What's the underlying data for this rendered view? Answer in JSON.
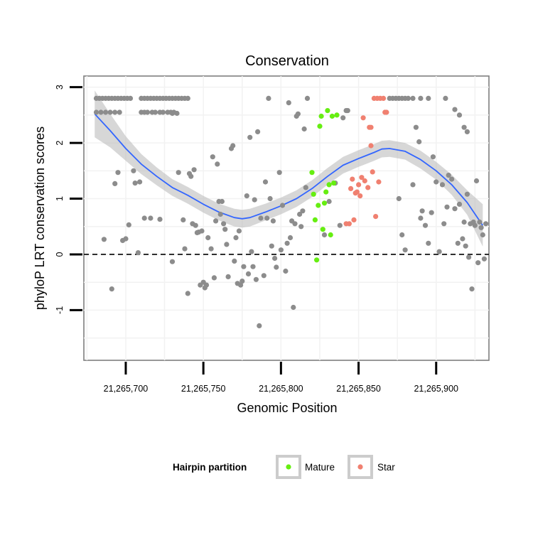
{
  "chart_data": {
    "type": "scatter",
    "title": "Conservation",
    "xlabel": "Genomic Position",
    "ylabel": "phyloP LRT conservation scores",
    "xlim": [
      21265673,
      21265934
    ],
    "ylim": [
      -1.9,
      3.2
    ],
    "x_ticks": [
      21265700,
      21265750,
      21265800,
      21265850,
      21265900
    ],
    "x_tick_labels": [
      "21,265,700",
      "21,265,750",
      "21,265,800",
      "21,265,850",
      "21,265,900"
    ],
    "y_ticks": [
      -1,
      0,
      1,
      2,
      3
    ],
    "y_tick_labels": [
      "-1",
      "0",
      "1",
      "2",
      "3"
    ],
    "reference_line": {
      "y": 0,
      "style": "dashed"
    },
    "legend": {
      "title": "Hairpin partition",
      "placement": "bottom",
      "entries": [
        {
          "label": "Mature",
          "color": "#66ee11"
        },
        {
          "label": "Star",
          "color": "#f08070"
        }
      ]
    },
    "colors": {
      "other": "#8c8c8c",
      "mature": "#66ee11",
      "star": "#f08070",
      "smooth": "#3366ff",
      "ribbon": "#bdbdbd"
    },
    "series": [
      {
        "name": "Other",
        "points": [
          [
            21265681,
            2.8
          ],
          [
            21265683,
            2.8
          ],
          [
            21265685,
            2.8
          ],
          [
            21265687,
            2.8
          ],
          [
            21265689,
            2.8
          ],
          [
            21265691,
            2.8
          ],
          [
            21265693,
            2.8
          ],
          [
            21265695,
            2.8
          ],
          [
            21265697,
            2.8
          ],
          [
            21265699,
            2.8
          ],
          [
            21265701,
            2.8
          ],
          [
            21265703,
            2.8
          ],
          [
            21265710,
            2.8
          ],
          [
            21265712,
            2.8
          ],
          [
            21265714,
            2.8
          ],
          [
            21265716,
            2.8
          ],
          [
            21265718,
            2.8
          ],
          [
            21265720,
            2.8
          ],
          [
            21265722,
            2.8
          ],
          [
            21265724,
            2.8
          ],
          [
            21265726,
            2.8
          ],
          [
            21265728,
            2.8
          ],
          [
            21265730,
            2.8
          ],
          [
            21265732,
            2.8
          ],
          [
            21265734,
            2.8
          ],
          [
            21265736,
            2.8
          ],
          [
            21265738,
            2.8
          ],
          [
            21265740,
            2.8
          ],
          [
            21265681,
            2.55
          ],
          [
            21265684,
            2.55
          ],
          [
            21265687,
            2.55
          ],
          [
            21265690,
            2.55
          ],
          [
            21265693,
            2.55
          ],
          [
            21265696,
            2.55
          ],
          [
            21265710,
            2.55
          ],
          [
            21265712,
            2.55
          ],
          [
            21265714,
            2.55
          ],
          [
            21265717,
            2.55
          ],
          [
            21265719,
            2.55
          ],
          [
            21265722,
            2.55
          ],
          [
            21265724,
            2.55
          ],
          [
            21265727,
            2.55
          ],
          [
            21265729,
            2.55
          ],
          [
            21265731,
            2.55
          ],
          [
            21265730,
            2.53
          ],
          [
            21265733,
            2.53
          ],
          [
            21265686,
            0.27
          ],
          [
            21265691,
            -0.62
          ],
          [
            21265693,
            1.27
          ],
          [
            21265695,
            1.47
          ],
          [
            21265698,
            0.25
          ],
          [
            21265700,
            0.28
          ],
          [
            21265702,
            0.53
          ],
          [
            21265705,
            1.5
          ],
          [
            21265706,
            1.28
          ],
          [
            21265708,
            0.03
          ],
          [
            21265709,
            1.3
          ],
          [
            21265712,
            0.65
          ],
          [
            21265716,
            0.65
          ],
          [
            21265722,
            0.63
          ],
          [
            21265730,
            -0.13
          ],
          [
            21265734,
            1.47
          ],
          [
            21265737,
            0.62
          ],
          [
            21265738,
            0.1
          ],
          [
            21265740,
            -0.7
          ],
          [
            21265741,
            1.45
          ],
          [
            21265742,
            1.4
          ],
          [
            21265743,
            0.55
          ],
          [
            21265744,
            1.52
          ],
          [
            21265745,
            0.52
          ],
          [
            21265746,
            0.39
          ],
          [
            21265747,
            0.4
          ],
          [
            21265748,
            -0.55
          ],
          [
            21265749,
            0.42
          ],
          [
            21265750,
            -0.5
          ],
          [
            21265751,
            -0.6
          ],
          [
            21265752,
            -0.55
          ],
          [
            21265753,
            0.3
          ],
          [
            21265755,
            0.1
          ],
          [
            21265756,
            1.75
          ],
          [
            21265757,
            -0.42
          ],
          [
            21265758,
            0.6
          ],
          [
            21265759,
            1.62
          ],
          [
            21265760,
            0.95
          ],
          [
            21265761,
            0.72
          ],
          [
            21265762,
            0.95
          ],
          [
            21265763,
            0.55
          ],
          [
            21265764,
            0.45
          ],
          [
            21265765,
            0.18
          ],
          [
            21265766,
            -0.4
          ],
          [
            21265768,
            1.9
          ],
          [
            21265769,
            1.95
          ],
          [
            21265770,
            -0.12
          ],
          [
            21265771,
            0.3
          ],
          [
            21265772,
            -0.52
          ],
          [
            21265773,
            0.42
          ],
          [
            21265774,
            -0.55
          ],
          [
            21265775,
            -0.48
          ],
          [
            21265776,
            -0.22
          ],
          [
            21265778,
            1.05
          ],
          [
            21265779,
            -0.35
          ],
          [
            21265780,
            2.1
          ],
          [
            21265781,
            0.05
          ],
          [
            21265782,
            -0.22
          ],
          [
            21265783,
            0.98
          ],
          [
            21265784,
            -0.45
          ],
          [
            21265785,
            2.2
          ],
          [
            21265786,
            -1.28
          ],
          [
            21265787,
            0.65
          ],
          [
            21265789,
            -0.38
          ],
          [
            21265790,
            1.3
          ],
          [
            21265791,
            0.65
          ],
          [
            21265792,
            2.8
          ],
          [
            21265793,
            1.0
          ],
          [
            21265794,
            0.15
          ],
          [
            21265795,
            0.6
          ],
          [
            21265796,
            -0.07
          ],
          [
            21265797,
            -0.23
          ],
          [
            21265799,
            1.47
          ],
          [
            21265800,
            0.08
          ],
          [
            21265801,
            0.88
          ],
          [
            21265803,
            -0.3
          ],
          [
            21265804,
            0.2
          ],
          [
            21265805,
            2.72
          ],
          [
            21265806,
            0.3
          ],
          [
            21265807,
            0.6
          ],
          [
            21265808,
            -0.95
          ],
          [
            21265809,
            0.55
          ],
          [
            21265810,
            2.48
          ],
          [
            21265811,
            2.52
          ],
          [
            21265813,
            0.5
          ],
          [
            21265815,
            2.25
          ],
          [
            21265817,
            2.8
          ],
          [
            21265812,
            0.72
          ],
          [
            21265814,
            0.78
          ],
          [
            21265816,
            1.2
          ],
          [
            21265828,
            0.35
          ],
          [
            21265831,
            0.95
          ],
          [
            21265835,
            1.28
          ],
          [
            21265838,
            0.52
          ],
          [
            21265840,
            2.45
          ],
          [
            21265842,
            2.58
          ],
          [
            21265843,
            2.58
          ],
          [
            21265870,
            2.8
          ],
          [
            21265872,
            2.8
          ],
          [
            21265874,
            2.8
          ],
          [
            21265876,
            2.8
          ],
          [
            21265878,
            2.8
          ],
          [
            21265880,
            2.8
          ],
          [
            21265882,
            2.8
          ],
          [
            21265885,
            2.8
          ],
          [
            21265890,
            2.8
          ],
          [
            21265895,
            2.8
          ],
          [
            21265906,
            2.8
          ],
          [
            21265912,
            2.6
          ],
          [
            21265915,
            2.5
          ],
          [
            21265918,
            2.28
          ],
          [
            21265920,
            2.2
          ],
          [
            21265876,
            1.0
          ],
          [
            21265878,
            0.35
          ],
          [
            21265880,
            0.08
          ],
          [
            21265885,
            1.25
          ],
          [
            21265887,
            2.28
          ],
          [
            21265889,
            2.02
          ],
          [
            21265890,
            0.65
          ],
          [
            21265891,
            0.78
          ],
          [
            21265893,
            0.52
          ],
          [
            21265895,
            0.2
          ],
          [
            21265897,
            0.75
          ],
          [
            21265898,
            1.75
          ],
          [
            21265900,
            1.3
          ],
          [
            21265902,
            0.05
          ],
          [
            21265904,
            1.25
          ],
          [
            21265905,
            0.55
          ],
          [
            21265907,
            0.85
          ],
          [
            21265908,
            1.42
          ],
          [
            21265910,
            1.35
          ],
          [
            21265912,
            0.82
          ],
          [
            21265914,
            0.2
          ],
          [
            21265915,
            0.9
          ],
          [
            21265917,
            0.28
          ],
          [
            21265918,
            0.58
          ],
          [
            21265919,
            0.15
          ],
          [
            21265920,
            1.08
          ],
          [
            21265921,
            -0.05
          ],
          [
            21265922,
            0.55
          ],
          [
            21265923,
            -0.62
          ],
          [
            21265924,
            0.58
          ],
          [
            21265925,
            0.52
          ],
          [
            21265926,
            1.32
          ],
          [
            21265927,
            -0.15
          ],
          [
            21265928,
            0.58
          ],
          [
            21265929,
            0.48
          ],
          [
            21265930,
            0.35
          ],
          [
            21265931,
            -0.08
          ],
          [
            21265932,
            0.55
          ]
        ]
      },
      {
        "name": "Mature",
        "points": [
          [
            21265820,
            1.47
          ],
          [
            21265821,
            1.08
          ],
          [
            21265822,
            0.62
          ],
          [
            21265823,
            -0.1
          ],
          [
            21265824,
            0.88
          ],
          [
            21265825,
            2.3
          ],
          [
            21265826,
            2.48
          ],
          [
            21265827,
            0.45
          ],
          [
            21265828,
            0.92
          ],
          [
            21265829,
            1.12
          ],
          [
            21265830,
            2.58
          ],
          [
            21265831,
            1.25
          ],
          [
            21265832,
            0.35
          ],
          [
            21265833,
            2.48
          ],
          [
            21265834,
            1.28
          ],
          [
            21265836,
            2.5
          ]
        ]
      },
      {
        "name": "Star",
        "points": [
          [
            21265842,
            0.55
          ],
          [
            21265844,
            0.55
          ],
          [
            21265845,
            1.18
          ],
          [
            21265846,
            1.35
          ],
          [
            21265847,
            0.62
          ],
          [
            21265848,
            1.1
          ],
          [
            21265849,
            1.12
          ],
          [
            21265850,
            1.25
          ],
          [
            21265851,
            1.05
          ],
          [
            21265852,
            1.38
          ],
          [
            21265853,
            2.45
          ],
          [
            21265854,
            1.32
          ],
          [
            21265856,
            1.2
          ],
          [
            21265857,
            2.28
          ],
          [
            21265858,
            2.28
          ],
          [
            21265858,
            1.95
          ],
          [
            21265859,
            1.48
          ],
          [
            21265860,
            2.8
          ],
          [
            21265861,
            0.68
          ],
          [
            21265862,
            2.8
          ],
          [
            21265863,
            1.3
          ],
          [
            21265864,
            2.8
          ],
          [
            21265866,
            2.8
          ],
          [
            21265867,
            2.55
          ],
          [
            21265868,
            2.55
          ]
        ]
      }
    ],
    "smooth_line": {
      "x": [
        21265680,
        21265690,
        21265700,
        21265710,
        21265720,
        21265730,
        21265740,
        21265750,
        21265760,
        21265770,
        21265775,
        21265780,
        21265790,
        21265800,
        21265810,
        21265820,
        21265830,
        21265840,
        21265850,
        21265860,
        21265865,
        21265870,
        21265880,
        21265890,
        21265900,
        21265910,
        21265920,
        21265930
      ],
      "y": [
        2.52,
        2.22,
        1.9,
        1.62,
        1.4,
        1.2,
        1.06,
        0.9,
        0.76,
        0.66,
        0.64,
        0.66,
        0.76,
        0.87,
        1.0,
        1.18,
        1.4,
        1.6,
        1.72,
        1.83,
        1.89,
        1.9,
        1.85,
        1.7,
        1.5,
        1.25,
        0.93,
        0.52
      ],
      "ribbon_half_width": [
        0.42,
        0.3,
        0.22,
        0.18,
        0.16,
        0.15,
        0.15,
        0.15,
        0.15,
        0.16,
        0.16,
        0.16,
        0.15,
        0.15,
        0.15,
        0.15,
        0.15,
        0.15,
        0.15,
        0.15,
        0.15,
        0.15,
        0.15,
        0.16,
        0.16,
        0.18,
        0.22,
        0.38
      ]
    }
  }
}
